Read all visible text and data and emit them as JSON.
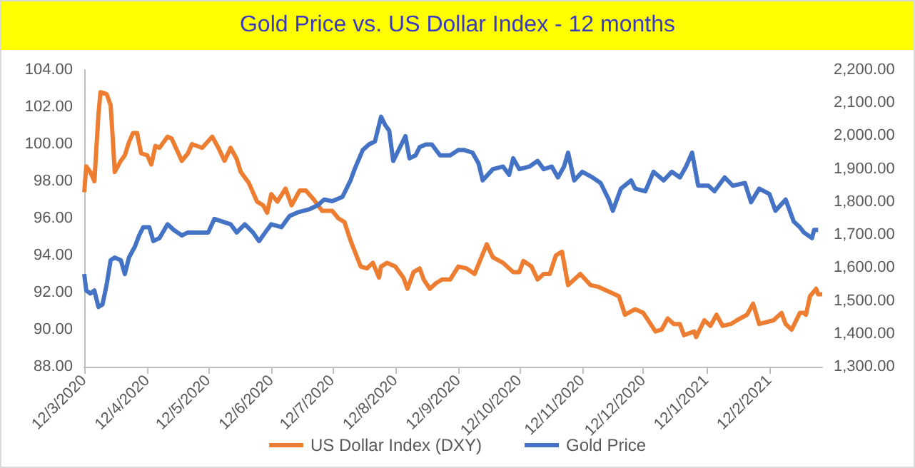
{
  "chart_data": {
    "type": "line",
    "title": "Gold Price vs. US Dollar Index - 12 months",
    "xlim": [
      "2020-03-12",
      "2021-03-10"
    ],
    "xticks": [
      {
        "value": "2020-03-12",
        "label": "12/3/2020"
      },
      {
        "value": "2020-04-12",
        "label": "12/4/2020"
      },
      {
        "value": "2020-05-12",
        "label": "12/5/2020"
      },
      {
        "value": "2020-06-12",
        "label": "12/6/2020"
      },
      {
        "value": "2020-07-12",
        "label": "12/7/2020"
      },
      {
        "value": "2020-08-12",
        "label": "12/8/2020"
      },
      {
        "value": "2020-09-12",
        "label": "12/9/2020"
      },
      {
        "value": "2020-10-12",
        "label": "12/10/2020"
      },
      {
        "value": "2020-11-12",
        "label": "12/11/2020"
      },
      {
        "value": "2020-12-12",
        "label": "12/12/2020"
      },
      {
        "value": "2021-01-12",
        "label": "12/1/2021"
      },
      {
        "value": "2021-02-12",
        "label": "12/2/2021"
      }
    ],
    "ylim": [
      88,
      104
    ],
    "yticks": [
      {
        "value": 88,
        "label": "88.00"
      },
      {
        "value": 90,
        "label": "90.00"
      },
      {
        "value": 92,
        "label": "92.00"
      },
      {
        "value": 94,
        "label": "94.00"
      },
      {
        "value": 96,
        "label": "96.00"
      },
      {
        "value": 98,
        "label": "98.00"
      },
      {
        "value": 100,
        "label": "100.00"
      },
      {
        "value": 102,
        "label": "102.00"
      },
      {
        "value": 104,
        "label": "104.00"
      }
    ],
    "y2lim": [
      1300,
      2200
    ],
    "y2ticks": [
      {
        "value": 1300,
        "label": "1,300.00"
      },
      {
        "value": 1400,
        "label": "1,400.00"
      },
      {
        "value": 1500,
        "label": "1,500.00"
      },
      {
        "value": 1600,
        "label": "1,600.00"
      },
      {
        "value": 1700,
        "label": "1,700.00"
      },
      {
        "value": 1800,
        "label": "1,800.00"
      },
      {
        "value": 1900,
        "label": "1,900.00"
      },
      {
        "value": 2000,
        "label": "2,000.00"
      },
      {
        "value": 2100,
        "label": "2,100.00"
      },
      {
        "value": 2200,
        "label": "2,200.00"
      }
    ],
    "grid": false,
    "legend": "bottom",
    "marker": "none",
    "series": [
      {
        "name": "US Dollar Index (DXY)",
        "color": "#ed7d31",
        "x": [
          "2020-03-12",
          "2020-03-13",
          "2020-03-15",
          "2020-03-17",
          "2020-03-19",
          "2020-03-20",
          "2020-03-23",
          "2020-03-25",
          "2020-03-26",
          "2020-03-27",
          "2020-03-30",
          "2020-04-01",
          "2020-04-03",
          "2020-04-05",
          "2020-04-07",
          "2020-04-09",
          "2020-04-12",
          "2020-04-14",
          "2020-04-16",
          "2020-04-18",
          "2020-04-22",
          "2020-04-24",
          "2020-04-29",
          "2020-05-02",
          "2020-05-04",
          "2020-05-09",
          "2020-05-14",
          "2020-05-17",
          "2020-05-20",
          "2020-05-23",
          "2020-05-26",
          "2020-05-28",
          "2020-06-01",
          "2020-06-05",
          "2020-06-08",
          "2020-06-10",
          "2020-06-12",
          "2020-06-15",
          "2020-06-19",
          "2020-06-22",
          "2020-06-26",
          "2020-06-29",
          "2020-07-03",
          "2020-07-07",
          "2020-07-12",
          "2020-07-15",
          "2020-07-18",
          "2020-07-21",
          "2020-07-26",
          "2020-07-29",
          "2020-08-01",
          "2020-08-04",
          "2020-08-05",
          "2020-08-08",
          "2020-08-12",
          "2020-08-16",
          "2020-08-18",
          "2020-08-21",
          "2020-08-24",
          "2020-08-26",
          "2020-08-29",
          "2020-09-01",
          "2020-09-04",
          "2020-09-08",
          "2020-09-12",
          "2020-09-16",
          "2020-09-20",
          "2020-09-26",
          "2020-09-29",
          "2020-10-04",
          "2020-10-09",
          "2020-10-12",
          "2020-10-14",
          "2020-10-18",
          "2020-10-21",
          "2020-10-24",
          "2020-10-27",
          "2020-10-30",
          "2020-11-02",
          "2020-11-05",
          "2020-11-11",
          "2020-11-16",
          "2020-11-20",
          "2020-11-26",
          "2020-11-30",
          "2020-12-03",
          "2020-12-08",
          "2020-12-12",
          "2020-12-18",
          "2020-12-21",
          "2020-12-24",
          "2020-12-27",
          "2020-12-30",
          "2021-01-01",
          "2021-01-06",
          "2021-01-07",
          "2021-01-11",
          "2021-01-14",
          "2021-01-17",
          "2021-01-20",
          "2021-01-24",
          "2021-01-27",
          "2021-02-01",
          "2021-02-04",
          "2021-02-07",
          "2021-02-14",
          "2021-02-18",
          "2021-02-20",
          "2021-02-23",
          "2021-02-27",
          "2021-03-01",
          "2021-03-02",
          "2021-03-04",
          "2021-03-07",
          "2021-03-08",
          "2021-03-10"
        ],
        "values": [
          97.4,
          98.8,
          98.5,
          98.0,
          101.6,
          102.8,
          102.7,
          102.1,
          100.4,
          98.5,
          99.1,
          99.4,
          100.1,
          100.6,
          100.6,
          99.5,
          99.4,
          98.9,
          99.9,
          99.8,
          100.4,
          100.3,
          99.1,
          99.5,
          100.0,
          99.8,
          100.4,
          99.8,
          99.1,
          99.8,
          99.2,
          98.5,
          97.9,
          96.9,
          96.7,
          96.3,
          97.3,
          96.9,
          97.6,
          96.7,
          97.5,
          97.5,
          97.0,
          96.4,
          96.4,
          96.0,
          95.8,
          94.8,
          93.4,
          93.3,
          93.6,
          92.8,
          93.4,
          93.6,
          93.4,
          92.8,
          92.2,
          93.1,
          93.3,
          92.7,
          92.2,
          92.5,
          92.7,
          92.7,
          93.4,
          93.3,
          93.0,
          94.6,
          93.9,
          93.6,
          93.1,
          93.1,
          93.7,
          93.4,
          92.7,
          93.0,
          93.0,
          94.0,
          94.2,
          92.4,
          93.0,
          92.4,
          92.3,
          92.0,
          91.8,
          90.8,
          91.1,
          90.9,
          89.9,
          90.0,
          90.6,
          90.3,
          90.3,
          89.7,
          89.9,
          89.6,
          90.5,
          90.2,
          90.8,
          90.2,
          90.3,
          90.5,
          90.8,
          91.4,
          90.3,
          90.5,
          90.9,
          90.3,
          90.0,
          90.9,
          90.9,
          90.8,
          91.8,
          92.2,
          91.9,
          91.9
        ]
      },
      {
        "name": "Gold Price",
        "color": "#4472c4",
        "axis": "y2",
        "x": [
          "2020-03-12",
          "2020-03-13",
          "2020-03-15",
          "2020-03-17",
          "2020-03-19",
          "2020-03-21",
          "2020-03-23",
          "2020-03-25",
          "2020-03-27",
          "2020-03-30",
          "2020-04-01",
          "2020-04-03",
          "2020-04-06",
          "2020-04-08",
          "2020-04-10",
          "2020-04-13",
          "2020-04-15",
          "2020-04-18",
          "2020-04-22",
          "2020-04-25",
          "2020-04-29",
          "2020-05-02",
          "2020-05-07",
          "2020-05-12",
          "2020-05-15",
          "2020-05-19",
          "2020-05-23",
          "2020-05-26",
          "2020-05-30",
          "2020-06-03",
          "2020-06-06",
          "2020-06-09",
          "2020-06-12",
          "2020-06-17",
          "2020-06-21",
          "2020-06-25",
          "2020-07-01",
          "2020-07-05",
          "2020-07-08",
          "2020-07-12",
          "2020-07-17",
          "2020-07-21",
          "2020-07-23",
          "2020-07-27",
          "2020-07-30",
          "2020-08-02",
          "2020-08-05",
          "2020-08-07",
          "2020-08-09",
          "2020-08-11",
          "2020-08-13",
          "2020-08-17",
          "2020-08-19",
          "2020-08-22",
          "2020-08-24",
          "2020-08-27",
          "2020-08-30",
          "2020-09-03",
          "2020-09-08",
          "2020-09-12",
          "2020-09-15",
          "2020-09-19",
          "2020-09-22",
          "2020-09-24",
          "2020-09-29",
          "2020-10-04",
          "2020-10-07",
          "2020-10-09",
          "2020-10-12",
          "2020-10-17",
          "2020-10-21",
          "2020-10-24",
          "2020-10-28",
          "2020-10-31",
          "2020-11-03",
          "2020-11-05",
          "2020-11-08",
          "2020-11-12",
          "2020-11-17",
          "2020-11-21",
          "2020-11-25",
          "2020-11-27",
          "2020-12-01",
          "2020-12-06",
          "2020-12-08",
          "2020-12-13",
          "2020-12-17",
          "2020-12-22",
          "2020-12-26",
          "2020-12-30",
          "2021-01-02",
          "2021-01-05",
          "2021-01-08",
          "2021-01-13",
          "2021-01-16",
          "2021-01-21",
          "2021-01-25",
          "2021-01-31",
          "2021-02-03",
          "2021-02-07",
          "2021-02-12",
          "2021-02-15",
          "2021-02-20",
          "2021-02-24",
          "2021-02-27",
          "2021-03-01",
          "2021-03-05",
          "2021-03-06",
          "2021-03-08"
        ],
        "values": [
          1581,
          1531,
          1522,
          1531,
          1481,
          1489,
          1548,
          1623,
          1631,
          1623,
          1581,
          1631,
          1665,
          1698,
          1723,
          1723,
          1681,
          1690,
          1732,
          1715,
          1698,
          1707,
          1707,
          1707,
          1748,
          1740,
          1732,
          1707,
          1732,
          1707,
          1681,
          1707,
          1732,
          1723,
          1757,
          1768,
          1778,
          1790,
          1807,
          1802,
          1815,
          1865,
          1899,
          1957,
          1974,
          1983,
          2058,
          2033,
          2016,
          1924,
          1949,
          1999,
          1932,
          1941,
          1966,
          1974,
          1974,
          1941,
          1941,
          1957,
          1957,
          1949,
          1916,
          1865,
          1899,
          1907,
          1882,
          1932,
          1899,
          1907,
          1924,
          1899,
          1907,
          1874,
          1907,
          1949,
          1865,
          1891,
          1874,
          1857,
          1807,
          1773,
          1840,
          1865,
          1840,
          1832,
          1891,
          1865,
          1891,
          1874,
          1907,
          1949,
          1849,
          1849,
          1832,
          1874,
          1849,
          1857,
          1799,
          1840,
          1824,
          1773,
          1807,
          1740,
          1723,
          1707,
          1690,
          1715,
          1715
        ]
      }
    ]
  }
}
